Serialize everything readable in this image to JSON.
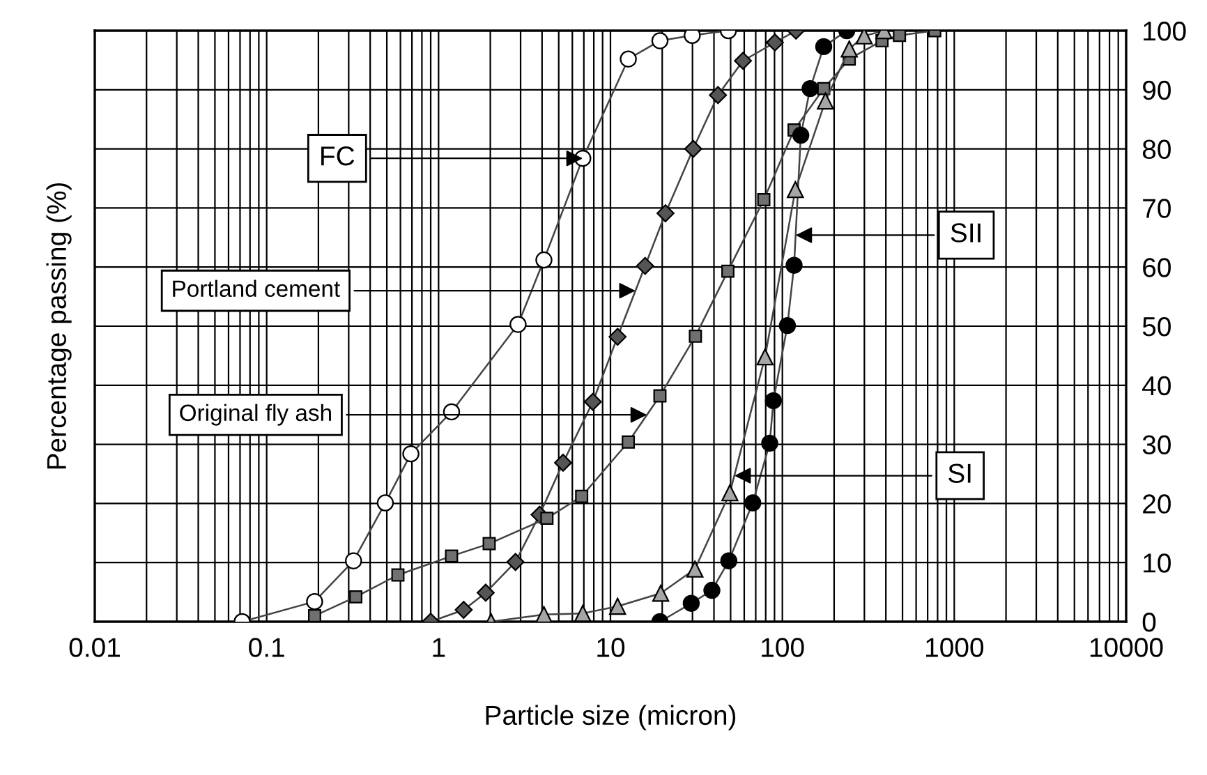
{
  "chart_data": {
    "type": "line",
    "xlabel": "Particle size (micron)",
    "ylabel": "Percentage passing (%)",
    "log": "x",
    "xlim": [
      0.01,
      10000
    ],
    "xticks": [
      0.01,
      0.1,
      1,
      10,
      100,
      1000,
      10000
    ],
    "ylim": [
      0,
      100
    ],
    "yticks": [
      0,
      10,
      20,
      30,
      40,
      50,
      60,
      70,
      80,
      90,
      100
    ],
    "grid": true,
    "legend": false,
    "series": [
      {
        "color": "#ffffff",
        "marker": "circle",
        "x": [
          0.072,
          0.19,
          0.32,
          0.49,
          0.69,
          1.19,
          2.9,
          4.1,
          6.9,
          12.7,
          19.4,
          29.9,
          48.5
        ],
        "values": [
          0,
          3.4,
          10.3,
          20.1,
          28.4,
          35.5,
          50.3,
          61.2,
          78.4,
          95.2,
          98.3,
          99.2,
          100
        ]
      },
      {
        "color": "#555555",
        "marker": "diamond",
        "x": [
          0.9,
          1.4,
          1.88,
          2.8,
          3.87,
          5.3,
          7.9,
          11.0,
          15.9,
          20.9,
          30.3,
          42.2,
          59,
          90.5,
          120
        ],
        "values": [
          0,
          2.0,
          4.9,
          10.1,
          18.1,
          26.9,
          37.2,
          48.2,
          60.2,
          69.1,
          80.0,
          89.1,
          94.9,
          98.0,
          100
        ]
      },
      {
        "color": "#707070",
        "marker": "square",
        "x": [
          0.19,
          0.33,
          0.58,
          1.19,
          1.97,
          4.27,
          6.8,
          12.7,
          19.4,
          31.2,
          48.2,
          78,
          117,
          174,
          245,
          380,
          480,
          770
        ],
        "values": [
          1.0,
          4.2,
          7.9,
          11.1,
          13.2,
          17.5,
          21.2,
          30.4,
          38.2,
          48.3,
          59.3,
          71.4,
          83.2,
          90.2,
          95.2,
          98.3,
          99.2,
          100
        ]
      },
      {
        "color": "#000000",
        "marker": "circle",
        "x": [
          19.4,
          29.5,
          38.9,
          48.8,
          67.3,
          84.4,
          88.7,
          107,
          117,
          128,
          145,
          174,
          237
        ],
        "values": [
          0,
          3.1,
          5.3,
          10.3,
          20.1,
          30.2,
          37.4,
          50.1,
          60.3,
          82.3,
          90.2,
          97.3,
          100
        ]
      },
      {
        "color": "#a6a6a6",
        "marker": "triangle",
        "x": [
          2.02,
          4.1,
          6.9,
          11.0,
          19.6,
          31,
          49.5,
          79.3,
          119,
          178,
          245,
          299,
          390
        ],
        "values": [
          0,
          1.2,
          1.4,
          2.6,
          4.8,
          8.9,
          21.8,
          44.8,
          73.1,
          88.1,
          96.9,
          99.1,
          100
        ]
      }
    ],
    "annotations": [
      {
        "text": "FC",
        "x": 6.9,
        "y": 78.4
      },
      {
        "text": "Portland cement",
        "x": 14,
        "y": 56
      },
      {
        "text": "Original fly ash",
        "x": 16.3,
        "y": 35
      },
      {
        "text": "SII",
        "x": 119.4,
        "y": 65.4
      },
      {
        "text": "SI",
        "x": 52.6,
        "y": 24.7
      }
    ]
  }
}
